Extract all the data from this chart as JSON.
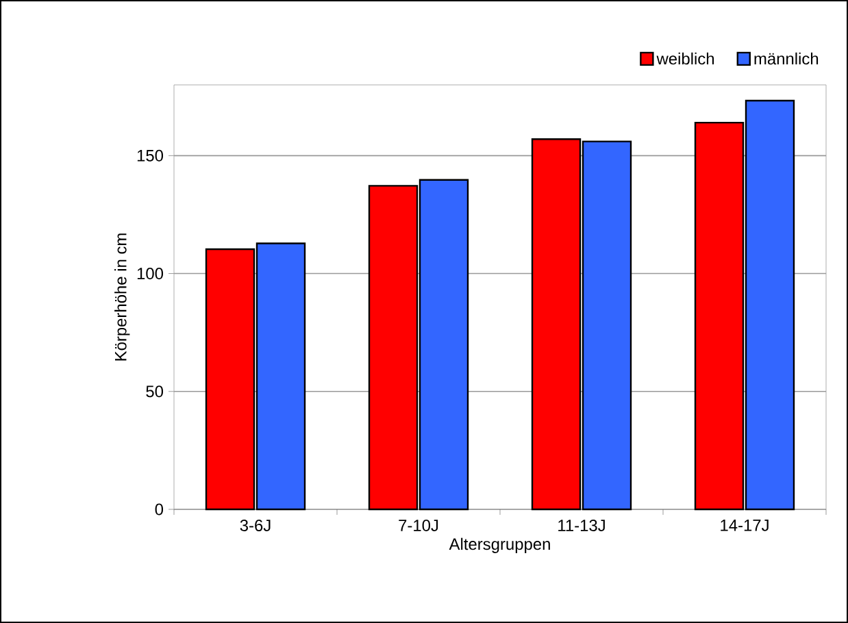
{
  "chart_data": {
    "type": "bar",
    "xlabel": "Altersgruppen",
    "ylabel": "Körperhöhe in cm",
    "categories": [
      "3-6J",
      "7-10J",
      "11-13J",
      "14-17J"
    ],
    "series": [
      {
        "name": "weiblich",
        "color": "#ff0000",
        "values": [
          110.3,
          137.2,
          157.0,
          164.0
        ]
      },
      {
        "name": "männlich",
        "color": "#3366ff",
        "values": [
          112.8,
          139.7,
          156.0,
          173.3
        ]
      }
    ],
    "ylim": [
      0,
      180
    ],
    "yticks": [
      0,
      50,
      100,
      150
    ],
    "grid": "y",
    "legend": "top right"
  }
}
